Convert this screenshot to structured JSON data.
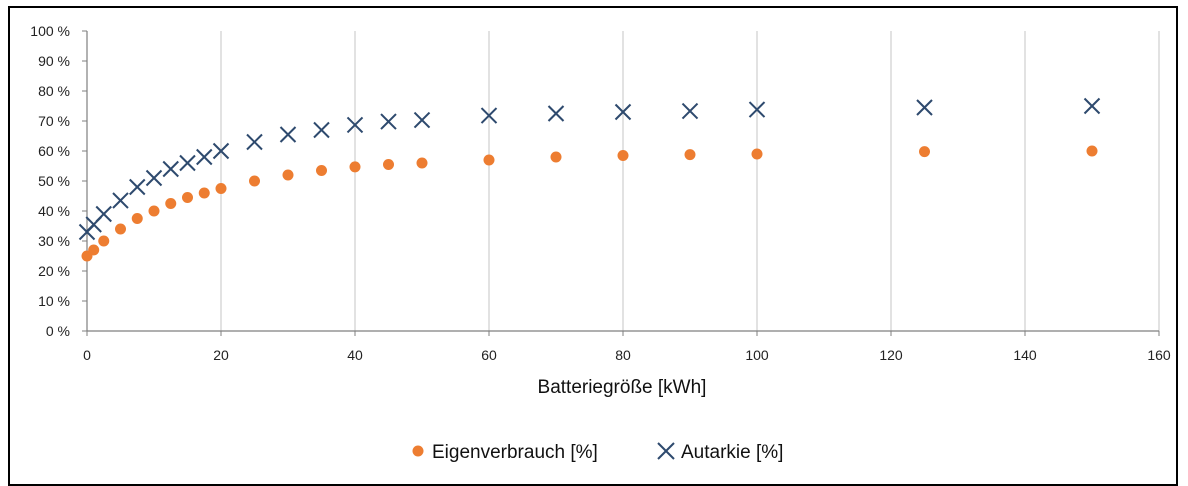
{
  "chart_data": {
    "type": "scatter",
    "xlabel": "Batteriegröße [kWh]",
    "ylabel": "",
    "xlim": [
      0,
      160
    ],
    "ylim": [
      0,
      100
    ],
    "x_ticks": [
      "0",
      "20",
      "40",
      "60",
      "80",
      "100",
      "120",
      "140",
      "160"
    ],
    "y_ticks": [
      "0 %",
      "10 %",
      "20 %",
      "30 %",
      "40 %",
      "50 %",
      "60 %",
      "70 %",
      "80 %",
      "90 %",
      "100 %"
    ],
    "grid": "vertical",
    "legend_position": "bottom",
    "series": [
      {
        "name": "Eigenverbrauch [%]",
        "marker": "circle",
        "color": "#ED7D31",
        "x": [
          0,
          1,
          2.5,
          5,
          7.5,
          10,
          12.5,
          15,
          17.5,
          20,
          25,
          30,
          35,
          40,
          45,
          50,
          60,
          70,
          80,
          90,
          100,
          125,
          150
        ],
        "y": [
          25,
          27,
          30,
          34,
          37.5,
          40,
          42.5,
          44.5,
          46,
          47.5,
          50,
          52,
          53.5,
          54.7,
          55.5,
          56,
          57,
          58,
          58.5,
          58.8,
          59,
          59.8,
          60
        ]
      },
      {
        "name": "Autarkie [%]",
        "marker": "x",
        "color": "#2E4A6E",
        "x": [
          0,
          1,
          2.5,
          5,
          7.5,
          10,
          12.5,
          15,
          17.5,
          20,
          25,
          30,
          35,
          40,
          45,
          50,
          60,
          70,
          80,
          90,
          100,
          125,
          150
        ],
        "y": [
          33,
          35.5,
          39,
          43.5,
          48,
          51,
          54,
          56,
          58,
          60,
          63,
          65.5,
          67,
          68.7,
          69.8,
          70.3,
          71.8,
          72.5,
          73,
          73.3,
          73.8,
          74.5,
          75
        ]
      }
    ]
  }
}
